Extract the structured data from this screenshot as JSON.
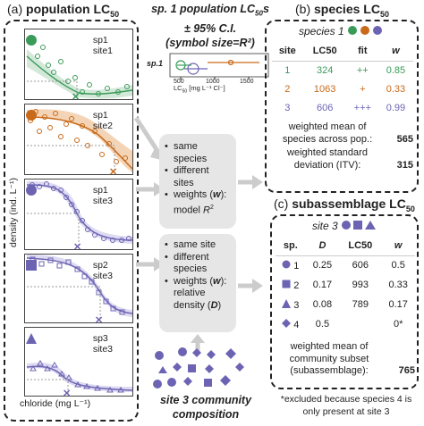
{
  "panel_a": {
    "label": "(a)",
    "title": "population LC",
    "sub": "50",
    "y_axis_label": "density (ind. L⁻¹)",
    "x_axis_label": "chloride (mg L⁻¹)",
    "plots": [
      {
        "species": "sp1",
        "site": "site1",
        "color": "#3a9b58",
        "symbol": "circle"
      },
      {
        "species": "sp1",
        "site": "site2",
        "color": "#c86a1a",
        "symbol": "circle"
      },
      {
        "species": "sp1",
        "site": "site3",
        "color": "#6c64b3",
        "symbol": "circle"
      },
      {
        "species": "sp2",
        "site": "site3",
        "color": "#6c64b3",
        "symbol": "square"
      },
      {
        "species": "sp3",
        "site": "site3",
        "color": "#6c64b3",
        "symbol": "triangle"
      }
    ]
  },
  "middle": {
    "title_line1": "sp. 1 population LC",
    "title_sub": "50",
    "title_line1_end": "s",
    "title_line2": "± 95% C.I.",
    "title_line3": "(symbol size=R²)",
    "inset": {
      "series_label": "sp.1",
      "ticks": [
        "500",
        "1000",
        "1500"
      ],
      "xlabel_prefix": "LC",
      "xlabel_sub": "50",
      "xlabel_suffix": " [mg L⁻¹ Cl⁻]"
    },
    "box1": {
      "items": [
        "same species",
        "different sites"
      ],
      "weights_prefix": "weights (",
      "weights_var": "w",
      "weights_mid": "): model ",
      "weights_r": "R",
      "weights_sup": "2"
    },
    "box2": {
      "items": [
        "same site",
        "different species"
      ],
      "weights_prefix": "weights (",
      "weights_var": "w",
      "weights_mid": "): relative density (",
      "weights_var2": "D",
      "weights_end": ")"
    },
    "community_line1": "site 3 community",
    "community_line2": "composition"
  },
  "panel_b": {
    "label": "(b)",
    "title": "species LC",
    "sub": "50",
    "header": "species 1",
    "cols": [
      "site",
      "LC50",
      "fit",
      "w"
    ],
    "rows": [
      {
        "site": "1",
        "lc50": "324",
        "fit": "++",
        "w": "0.85",
        "color": "#3a9b58"
      },
      {
        "site": "2",
        "lc50": "1063",
        "fit": "+",
        "w": "0.33",
        "color": "#c86a1a"
      },
      {
        "site": "3",
        "lc50": "606",
        "fit": "+++",
        "w": "0.99",
        "color": "#6c64b3"
      }
    ],
    "summary1": "weighted mean of species across pop.:",
    "summary1_val": "565",
    "summary2": "weighted standard deviation (ITV):",
    "summary2_val": "315"
  },
  "panel_c": {
    "label": "(c)",
    "title": "subassemblage LC",
    "sub": "50",
    "header": "site 3",
    "cols": [
      "sp.",
      "D",
      "LC50",
      "w"
    ],
    "rows": [
      {
        "sp": "1",
        "symbol": "circle",
        "d": "0.25",
        "lc50": "606",
        "w": "0.5"
      },
      {
        "sp": "2",
        "symbol": "square",
        "d": "0.17",
        "lc50": "993",
        "w": "0.33"
      },
      {
        "sp": "3",
        "symbol": "triangle",
        "d": "0.08",
        "lc50": "789",
        "w": "0.17"
      },
      {
        "sp": "4",
        "symbol": "diamond",
        "d": "0.5",
        "lc50": "",
        "w": "0*"
      }
    ],
    "summary": "weighted mean of community subset (subassemblage):",
    "summary_val": "765",
    "footnote": "*excluded because species 4 is only present at site 3"
  }
}
